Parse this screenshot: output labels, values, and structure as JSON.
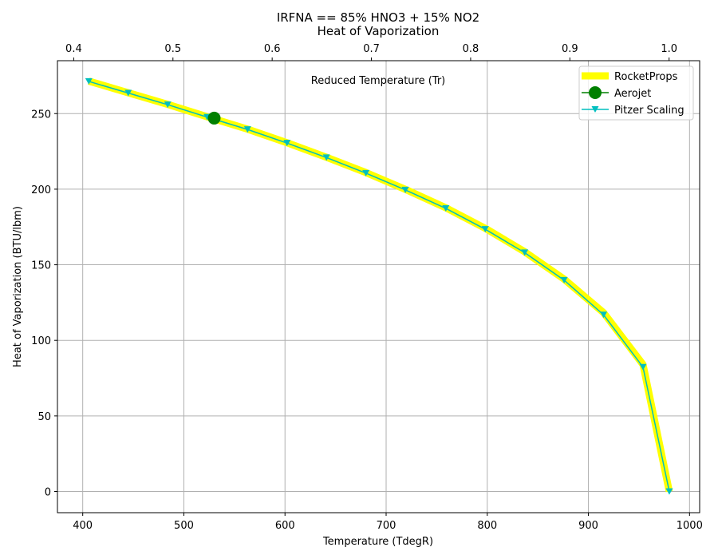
{
  "chart_data": {
    "type": "line",
    "title": "IRFNA == 85% HNO3 + 15% NO2",
    "subtitle": "Heat of Vaporization",
    "xlabel": "Temperature (TdegR)",
    "ylabel": "Heat of Vaporization (BTU/lbm)",
    "top_axis_label": "Reduced Temperature (Tr)",
    "xlim": [
      375,
      1010
    ],
    "ylim": [
      -14,
      285
    ],
    "top_axis_lim": [
      0.3836,
      1.0308
    ],
    "x_ticks": [
      400,
      500,
      600,
      700,
      800,
      900,
      1000
    ],
    "y_ticks": [
      0,
      50,
      100,
      150,
      200,
      250
    ],
    "top_ticks": [
      0.4,
      0.5,
      0.6,
      0.7,
      0.8,
      0.9,
      1.0
    ],
    "grid": true,
    "legend_position": "top-right",
    "series": [
      {
        "name": "RocketProps",
        "color": "#ffff00",
        "style": "thick-line",
        "x": [
          406,
          445,
          484,
          523,
          563,
          602,
          641,
          680,
          719,
          759,
          798,
          837,
          876,
          915,
          954,
          980
        ],
        "y": [
          271.5,
          263.8,
          256.1,
          247.9,
          239.7,
          230.7,
          221.1,
          211.0,
          199.9,
          187.7,
          174.1,
          158.6,
          140.5,
          118.3,
          84.0,
          0
        ]
      },
      {
        "name": "Aerojet",
        "color": "#008000",
        "style": "marker-circle",
        "x": [
          530
        ],
        "y": [
          247
        ]
      },
      {
        "name": "Pitzer Scaling",
        "color": "#00bfbf",
        "style": "line-triangle",
        "x": [
          406,
          445,
          484,
          523,
          563,
          602,
          641,
          680,
          719,
          759,
          798,
          837,
          876,
          915,
          954,
          980
        ],
        "y": [
          271.3,
          263.6,
          255.9,
          247.7,
          239.5,
          230.5,
          220.9,
          210.6,
          199.5,
          187.3,
          173.5,
          158.0,
          139.8,
          116.9,
          82.3,
          0
        ]
      }
    ]
  }
}
